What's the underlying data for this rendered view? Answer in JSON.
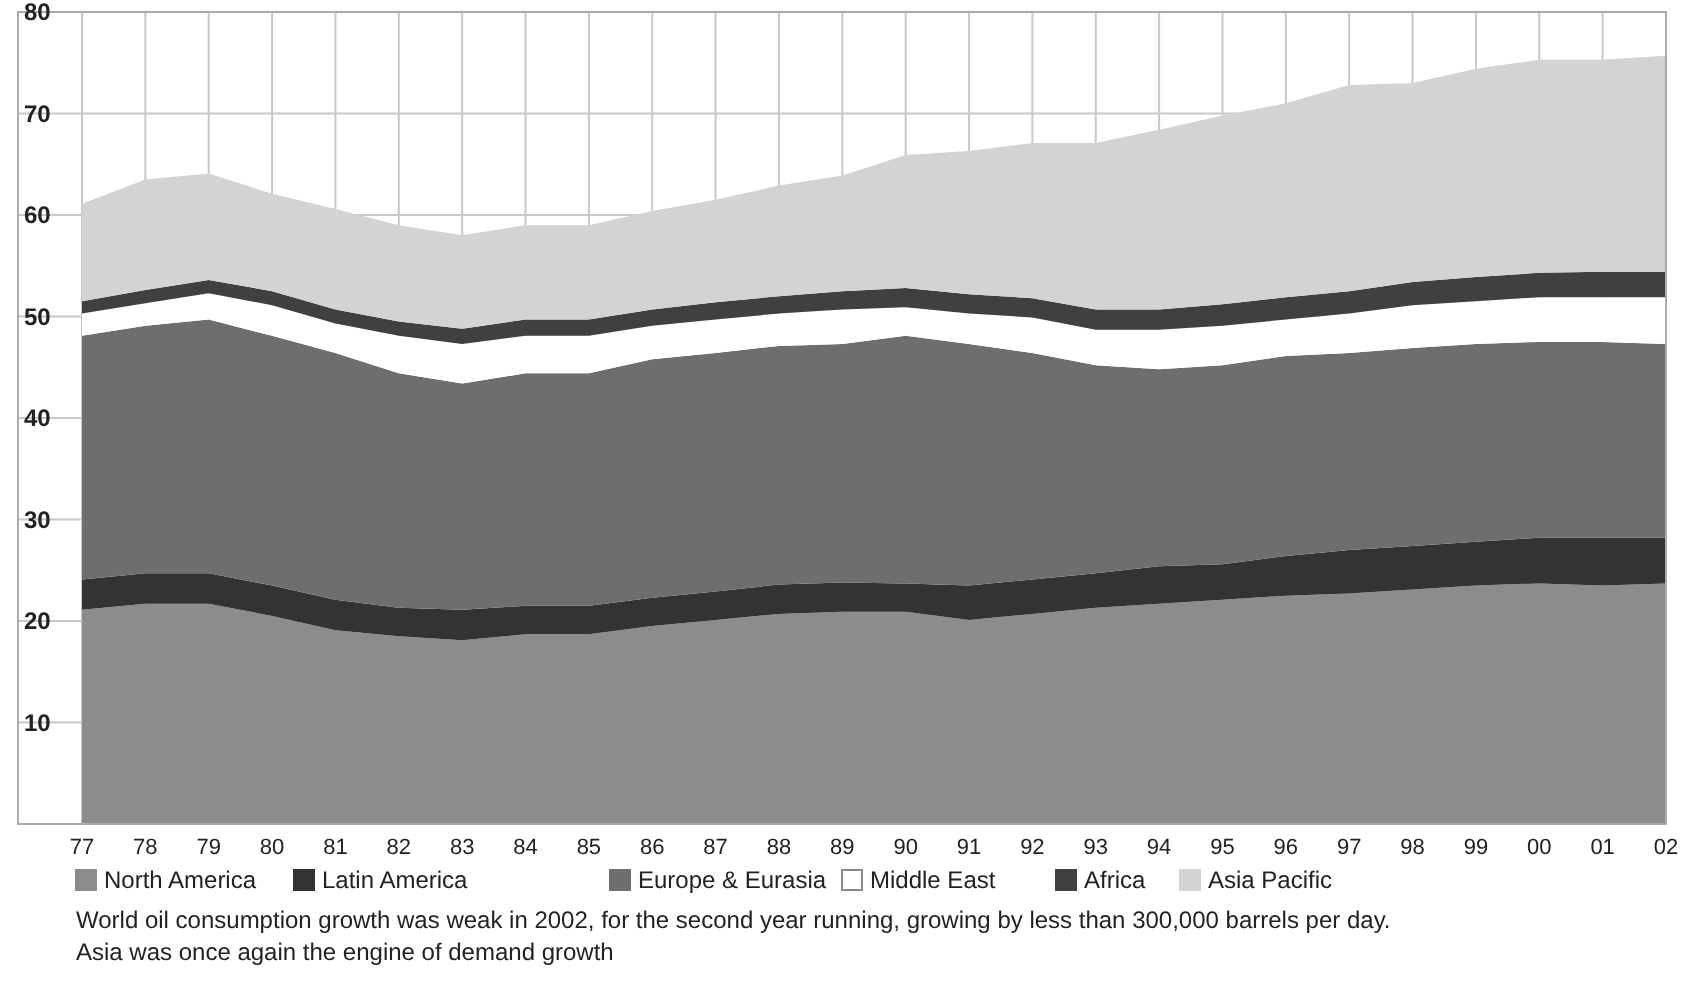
{
  "chart_data": {
    "type": "area",
    "stacked": true,
    "categories": [
      "77",
      "78",
      "79",
      "80",
      "81",
      "82",
      "83",
      "84",
      "85",
      "86",
      "87",
      "88",
      "89",
      "90",
      "91",
      "92",
      "93",
      "94",
      "95",
      "96",
      "97",
      "98",
      "99",
      "00",
      "01",
      "02"
    ],
    "series": [
      {
        "name": "North America",
        "color": "#8c8c8c",
        "values": [
          21.1,
          21.7,
          21.7,
          20.5,
          19.1,
          18.5,
          18.1,
          18.7,
          18.7,
          19.5,
          20.1,
          20.7,
          20.9,
          20.9,
          20.1,
          20.7,
          21.3,
          21.7,
          22.1,
          22.5,
          22.7,
          23.1,
          23.5,
          23.7,
          23.5,
          23.7
        ]
      },
      {
        "name": "Latin America",
        "color": "#333333",
        "values": [
          3.0,
          3.0,
          3.0,
          3.0,
          3.0,
          2.8,
          3.0,
          2.8,
          2.8,
          2.8,
          2.8,
          2.9,
          2.9,
          2.8,
          3.4,
          3.4,
          3.4,
          3.7,
          3.5,
          3.9,
          4.3,
          4.3,
          4.3,
          4.5,
          4.7,
          4.5
        ]
      },
      {
        "name": "Europe & Eurasia",
        "color": "#6e6e6e",
        "values": [
          24.0,
          24.4,
          25.0,
          24.6,
          24.3,
          23.1,
          22.3,
          22.9,
          22.9,
          23.5,
          23.5,
          23.5,
          23.5,
          24.4,
          23.8,
          22.3,
          20.5,
          19.4,
          19.6,
          19.7,
          19.4,
          19.5,
          19.5,
          19.3,
          19.3,
          19.1
        ]
      },
      {
        "name": "Middle East",
        "color": "#ffffff",
        "values": [
          2.2,
          2.2,
          2.6,
          3.0,
          2.9,
          3.7,
          3.9,
          3.7,
          3.7,
          3.3,
          3.3,
          3.2,
          3.4,
          2.8,
          3.0,
          3.5,
          3.5,
          3.9,
          3.9,
          3.6,
          3.9,
          4.2,
          4.2,
          4.4,
          4.4,
          4.6
        ]
      },
      {
        "name": "Africa",
        "color": "#404040",
        "values": [
          1.2,
          1.3,
          1.3,
          1.4,
          1.4,
          1.4,
          1.5,
          1.6,
          1.6,
          1.6,
          1.7,
          1.7,
          1.8,
          1.9,
          1.9,
          1.9,
          2.0,
          2.0,
          2.1,
          2.2,
          2.2,
          2.3,
          2.4,
          2.4,
          2.5,
          2.5
        ]
      },
      {
        "name": "Asia Pacific",
        "color": "#d3d3d3",
        "values": [
          9.6,
          10.9,
          10.5,
          9.6,
          9.9,
          9.5,
          9.2,
          9.3,
          9.3,
          9.7,
          10.1,
          10.9,
          11.4,
          13.1,
          14.1,
          15.3,
          16.4,
          17.7,
          18.6,
          19.1,
          20.3,
          19.6,
          20.5,
          21.0,
          20.9,
          21.3
        ]
      }
    ],
    "ylim": [
      0,
      80
    ],
    "yticks": [
      10,
      20,
      30,
      40,
      50,
      60,
      70,
      80
    ],
    "grid": true,
    "legend": "bottom",
    "annotations": [
      "World oil consumption growth was weak in 2002, for the second year running, growing by less than 300,000 barrels per day.",
      "Asia was once again the engine of demand growth"
    ]
  }
}
